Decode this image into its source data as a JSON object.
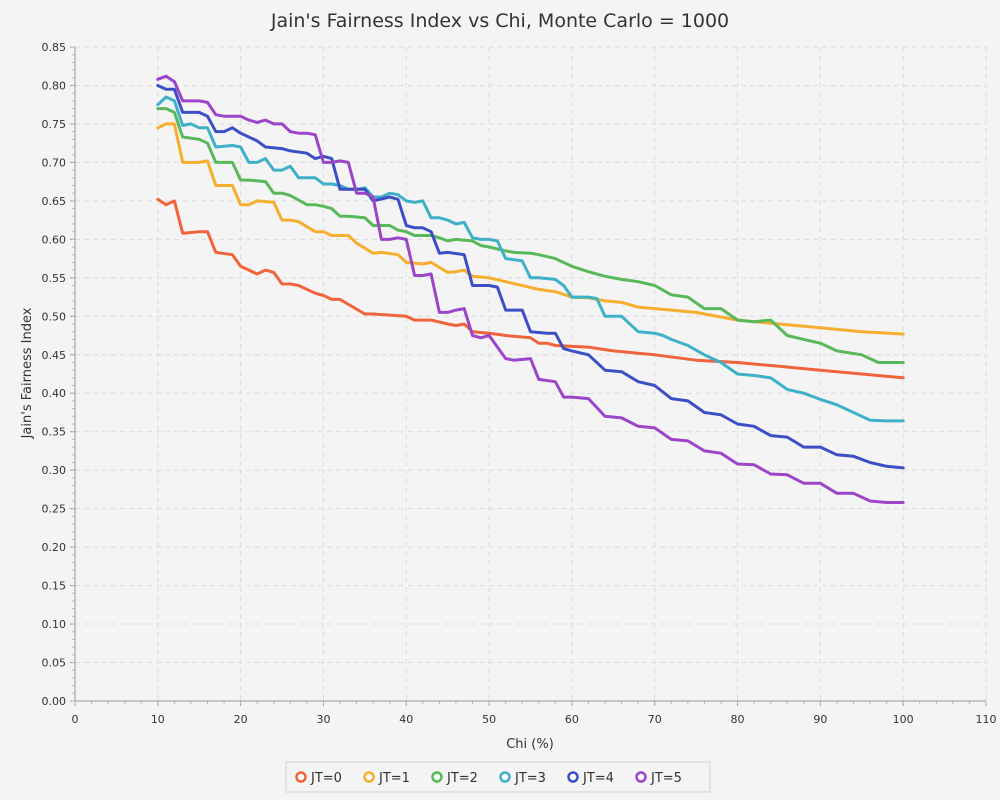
{
  "chart_data": {
    "type": "line",
    "title": "Jain's Fairness Index vs Chi, Monte Carlo = 1000",
    "xlabel": "Chi (%)",
    "ylabel": "Jain's Fairness Index",
    "xlim": [
      0,
      110
    ],
    "ylim": [
      0,
      0.85
    ],
    "xticks": [
      "0",
      "10",
      "20",
      "30",
      "40",
      "50",
      "60",
      "70",
      "80",
      "90",
      "100",
      "110"
    ],
    "yticks": [
      "0.00",
      "0.05",
      "0.10",
      "0.15",
      "0.20",
      "0.25",
      "0.30",
      "0.35",
      "0.40",
      "0.45",
      "0.50",
      "0.55",
      "0.60",
      "0.65",
      "0.70",
      "0.75",
      "0.80",
      "0.85"
    ],
    "grid": true,
    "legend_position": "bottom",
    "series": [
      {
        "name": "JT=0",
        "color": "#f0643c",
        "x": [
          10,
          11,
          12,
          13,
          15,
          16,
          17,
          19,
          20,
          21,
          22,
          23,
          24,
          25,
          26,
          27,
          29,
          30,
          31,
          32,
          35,
          36,
          40,
          41,
          43,
          45,
          46,
          47,
          48,
          50,
          52,
          55,
          56,
          57,
          58,
          62,
          65,
          70,
          75,
          80,
          85,
          90,
          95,
          100
        ],
        "y": [
          0.652,
          0.645,
          0.65,
          0.608,
          0.61,
          0.61,
          0.583,
          0.58,
          0.565,
          0.56,
          0.555,
          0.56,
          0.557,
          0.542,
          0.542,
          0.54,
          0.53,
          0.527,
          0.522,
          0.522,
          0.503,
          0.503,
          0.5,
          0.495,
          0.495,
          0.49,
          0.488,
          0.49,
          0.48,
          0.478,
          0.475,
          0.472,
          0.465,
          0.465,
          0.462,
          0.46,
          0.455,
          0.45,
          0.443,
          0.44,
          0.435,
          0.43,
          0.425,
          0.42
        ]
      },
      {
        "name": "JT=1",
        "color": "#f5ae2d",
        "x": [
          10,
          11,
          12,
          13,
          15,
          16,
          17,
          19,
          20,
          21,
          22,
          24,
          25,
          26,
          27,
          29,
          30,
          31,
          33,
          34,
          36,
          37,
          39,
          40,
          42,
          43,
          45,
          46,
          47,
          48,
          50,
          52,
          54,
          56,
          58,
          60,
          62,
          64,
          66,
          68,
          70,
          75,
          80,
          85,
          90,
          95,
          100
        ],
        "y": [
          0.745,
          0.75,
          0.75,
          0.7,
          0.7,
          0.702,
          0.67,
          0.67,
          0.645,
          0.645,
          0.65,
          0.648,
          0.625,
          0.625,
          0.623,
          0.61,
          0.61,
          0.605,
          0.605,
          0.595,
          0.582,
          0.583,
          0.58,
          0.57,
          0.568,
          0.57,
          0.557,
          0.558,
          0.56,
          0.552,
          0.55,
          0.545,
          0.54,
          0.535,
          0.532,
          0.525,
          0.524,
          0.52,
          0.518,
          0.512,
          0.51,
          0.505,
          0.495,
          0.49,
          0.485,
          0.48,
          0.477
        ]
      },
      {
        "name": "JT=2",
        "color": "#58b85a",
        "x": [
          10,
          11,
          12,
          13,
          15,
          16,
          17,
          19,
          20,
          21,
          23,
          24,
          25,
          26,
          28,
          29,
          30,
          31,
          32,
          33,
          35,
          36,
          38,
          39,
          40,
          41,
          43,
          44,
          45,
          46,
          48,
          49,
          50,
          52,
          53,
          55,
          56,
          58,
          60,
          62,
          64,
          66,
          68,
          70,
          72,
          74,
          76,
          78,
          80,
          82,
          84,
          86,
          88,
          90,
          92,
          95,
          97,
          100
        ],
        "y": [
          0.77,
          0.77,
          0.765,
          0.733,
          0.73,
          0.725,
          0.7,
          0.7,
          0.677,
          0.677,
          0.675,
          0.66,
          0.66,
          0.657,
          0.645,
          0.645,
          0.643,
          0.64,
          0.63,
          0.63,
          0.628,
          0.618,
          0.618,
          0.612,
          0.61,
          0.605,
          0.605,
          0.602,
          0.598,
          0.6,
          0.598,
          0.592,
          0.59,
          0.585,
          0.583,
          0.582,
          0.58,
          0.575,
          0.565,
          0.558,
          0.552,
          0.548,
          0.545,
          0.54,
          0.528,
          0.525,
          0.51,
          0.51,
          0.495,
          0.493,
          0.495,
          0.475,
          0.47,
          0.465,
          0.455,
          0.45,
          0.44,
          0.44
        ]
      },
      {
        "name": "JT=3",
        "color": "#3eb0c8",
        "x": [
          10,
          11,
          12,
          13,
          14,
          15,
          16,
          17,
          19,
          20,
          21,
          22,
          23,
          24,
          25,
          26,
          27,
          28,
          29,
          30,
          31,
          32,
          33,
          34,
          35,
          36,
          37,
          38,
          39,
          40,
          41,
          42,
          43,
          44,
          45,
          46,
          47,
          48,
          49,
          50,
          51,
          52,
          54,
          55,
          56,
          58,
          59,
          60,
          62,
          63,
          64,
          65,
          66,
          68,
          70,
          71,
          72,
          74,
          76,
          78,
          80,
          82,
          84,
          86,
          88,
          90,
          92,
          94,
          96,
          98,
          100
        ],
        "y": [
          0.775,
          0.785,
          0.78,
          0.748,
          0.75,
          0.745,
          0.745,
          0.72,
          0.722,
          0.72,
          0.7,
          0.7,
          0.705,
          0.69,
          0.69,
          0.695,
          0.68,
          0.68,
          0.68,
          0.672,
          0.672,
          0.67,
          0.665,
          0.665,
          0.667,
          0.655,
          0.655,
          0.66,
          0.658,
          0.65,
          0.648,
          0.65,
          0.628,
          0.628,
          0.625,
          0.62,
          0.622,
          0.602,
          0.6,
          0.6,
          0.598,
          0.575,
          0.572,
          0.55,
          0.55,
          0.548,
          0.54,
          0.525,
          0.525,
          0.523,
          0.5,
          0.5,
          0.5,
          0.48,
          0.478,
          0.475,
          0.47,
          0.462,
          0.45,
          0.44,
          0.425,
          0.423,
          0.42,
          0.405,
          0.4,
          0.392,
          0.385,
          0.375,
          0.365,
          0.364,
          0.364
        ]
      },
      {
        "name": "JT=4",
        "color": "#3d4fc4",
        "x": [
          10,
          11,
          12,
          13,
          15,
          16,
          17,
          18,
          19,
          20,
          22,
          23,
          25,
          26,
          28,
          29,
          30,
          31,
          32,
          33,
          35,
          36,
          38,
          39,
          40,
          41,
          42,
          43,
          44,
          45,
          47,
          48,
          50,
          51,
          52,
          54,
          55,
          57,
          58,
          59,
          60,
          62,
          64,
          66,
          68,
          70,
          72,
          74,
          76,
          78,
          80,
          82,
          84,
          86,
          88,
          90,
          92,
          94,
          96,
          98,
          100
        ],
        "y": [
          0.8,
          0.795,
          0.795,
          0.765,
          0.765,
          0.76,
          0.74,
          0.74,
          0.745,
          0.738,
          0.728,
          0.72,
          0.718,
          0.715,
          0.712,
          0.705,
          0.708,
          0.705,
          0.665,
          0.665,
          0.665,
          0.65,
          0.655,
          0.652,
          0.618,
          0.615,
          0.615,
          0.61,
          0.582,
          0.583,
          0.58,
          0.54,
          0.54,
          0.538,
          0.508,
          0.508,
          0.48,
          0.478,
          0.478,
          0.458,
          0.455,
          0.45,
          0.43,
          0.428,
          0.415,
          0.41,
          0.393,
          0.39,
          0.375,
          0.372,
          0.36,
          0.357,
          0.345,
          0.343,
          0.33,
          0.33,
          0.32,
          0.318,
          0.31,
          0.305,
          0.303
        ]
      },
      {
        "name": "JT=5",
        "color": "#9b45c8",
        "x": [
          10,
          11,
          12,
          13,
          15,
          16,
          17,
          18,
          19,
          20,
          21,
          22,
          23,
          24,
          25,
          26,
          27,
          28,
          29,
          30,
          31,
          32,
          33,
          34,
          35,
          36,
          37,
          38,
          39,
          40,
          41,
          42,
          43,
          44,
          45,
          46,
          47,
          48,
          49,
          50,
          52,
          53,
          55,
          56,
          58,
          59,
          60,
          62,
          64,
          66,
          68,
          70,
          72,
          74,
          76,
          78,
          80,
          82,
          84,
          86,
          88,
          90,
          92,
          94,
          96,
          98,
          100
        ],
        "y": [
          0.808,
          0.812,
          0.805,
          0.78,
          0.78,
          0.778,
          0.762,
          0.76,
          0.76,
          0.76,
          0.755,
          0.752,
          0.755,
          0.75,
          0.75,
          0.74,
          0.738,
          0.738,
          0.736,
          0.7,
          0.7,
          0.702,
          0.7,
          0.66,
          0.66,
          0.655,
          0.6,
          0.6,
          0.602,
          0.6,
          0.553,
          0.553,
          0.555,
          0.505,
          0.505,
          0.508,
          0.51,
          0.475,
          0.472,
          0.475,
          0.445,
          0.443,
          0.445,
          0.418,
          0.415,
          0.395,
          0.395,
          0.393,
          0.37,
          0.368,
          0.357,
          0.355,
          0.34,
          0.338,
          0.325,
          0.322,
          0.308,
          0.307,
          0.295,
          0.294,
          0.283,
          0.283,
          0.27,
          0.27,
          0.26,
          0.258,
          0.258
        ]
      }
    ]
  }
}
